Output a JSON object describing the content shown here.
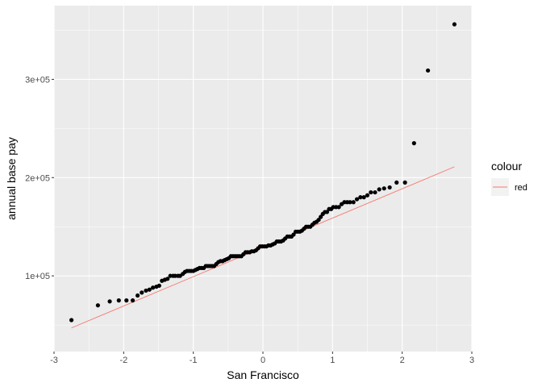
{
  "chart_data": {
    "type": "scatter",
    "title": "",
    "xlabel": "San Francisco",
    "ylabel": "annual base pay",
    "xlim": [
      -3,
      3
    ],
    "ylim": [
      23000,
      375000
    ],
    "x_ticks": [
      -3,
      -2,
      -1,
      0,
      1,
      2,
      3
    ],
    "x_tick_labels": [
      "-3",
      "-2",
      "-1",
      "0",
      "1",
      "2",
      "3"
    ],
    "y_ticks": [
      100000,
      200000,
      300000
    ],
    "y_tick_labels": [
      "1e+05",
      "2e+05",
      "3e+05"
    ],
    "grid": true,
    "background": "#ebebeb",
    "legend": {
      "title": "colour",
      "position": "right",
      "entries": [
        {
          "label": "red",
          "color": "#f8766d"
        }
      ]
    },
    "reference_line": {
      "label": "red",
      "color": "#f8766d",
      "x": [
        -2.75,
        2.75
      ],
      "y": [
        47000,
        211000
      ]
    },
    "points": {
      "color": "#000000",
      "x": [
        -2.75,
        -2.37,
        -2.2,
        -2.07,
        -1.96,
        -1.87,
        -1.8,
        -1.74,
        -1.68,
        -1.63,
        -1.58,
        -1.53,
        -1.49,
        -1.45,
        -1.41,
        -1.37,
        -1.33,
        -1.29,
        -1.26,
        -1.22,
        -1.19,
        -1.15,
        -1.12,
        -1.09,
        -1.06,
        -1.03,
        -1.0,
        -0.97,
        -0.94,
        -0.91,
        -0.88,
        -0.85,
        -0.82,
        -0.79,
        -0.76,
        -0.73,
        -0.7,
        -0.67,
        -0.64,
        -0.61,
        -0.58,
        -0.55,
        -0.52,
        -0.49,
        -0.46,
        -0.43,
        -0.4,
        -0.37,
        -0.34,
        -0.31,
        -0.28,
        -0.25,
        -0.22,
        -0.19,
        -0.16,
        -0.13,
        -0.1,
        -0.07,
        -0.04,
        -0.01,
        0.02,
        0.05,
        0.08,
        0.11,
        0.14,
        0.17,
        0.2,
        0.23,
        0.26,
        0.29,
        0.32,
        0.35,
        0.38,
        0.41,
        0.44,
        0.47,
        0.5,
        0.53,
        0.56,
        0.59,
        0.62,
        0.65,
        0.68,
        0.71,
        0.74,
        0.77,
        0.8,
        0.83,
        0.86,
        0.89,
        0.92,
        0.95,
        0.98,
        1.01,
        1.05,
        1.09,
        1.13,
        1.17,
        1.21,
        1.25,
        1.3,
        1.35,
        1.4,
        1.45,
        1.5,
        1.55,
        1.61,
        1.67,
        1.74,
        1.82,
        1.92,
        2.04,
        2.17,
        2.37,
        2.75
      ],
      "y": [
        55000,
        70000,
        74000,
        75000,
        75000,
        75000,
        80000,
        83000,
        85000,
        86000,
        88000,
        89000,
        90000,
        95000,
        96000,
        97000,
        100000,
        100000,
        100000,
        100000,
        100000,
        102000,
        104000,
        105000,
        105000,
        105000,
        105000,
        106000,
        107000,
        108000,
        108000,
        108000,
        110000,
        110000,
        110000,
        110000,
        110000,
        112000,
        114000,
        115000,
        115000,
        116000,
        117000,
        118000,
        120000,
        120000,
        120000,
        120000,
        120000,
        120000,
        122000,
        124000,
        124000,
        124000,
        125000,
        125000,
        126000,
        128000,
        130000,
        130000,
        130000,
        130000,
        131000,
        131000,
        132000,
        133000,
        135000,
        135000,
        135000,
        136000,
        138000,
        140000,
        140000,
        140000,
        142000,
        145000,
        145000,
        145000,
        146000,
        148000,
        150000,
        150000,
        150000,
        152000,
        154000,
        155000,
        157000,
        160000,
        163000,
        165000,
        165000,
        168000,
        168000,
        170000,
        170000,
        170000,
        173000,
        175000,
        175000,
        175000,
        175000,
        178000,
        180000,
        180000,
        182000,
        185000,
        185000,
        188000,
        189000,
        190000,
        195000,
        195000,
        235000,
        309000,
        356000
      ]
    }
  }
}
